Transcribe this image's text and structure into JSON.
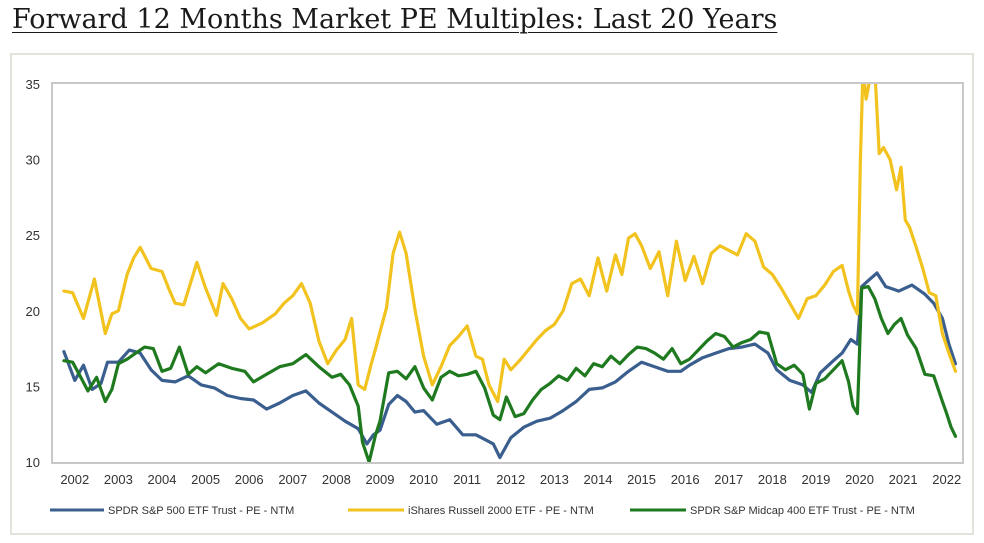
{
  "chart_data": {
    "type": "line",
    "title": "Forward 12 Months Market PE Multiples: Last 20 Years",
    "xlabel": "",
    "ylabel": "",
    "xlim": [
      2001.5,
      2022.35
    ],
    "ylim": [
      10,
      35
    ],
    "yticks": [
      10,
      15,
      20,
      25,
      30,
      35
    ],
    "xticks": [
      "2002",
      "2003",
      "2004",
      "2005",
      "2006",
      "2007",
      "2008",
      "2009",
      "2010",
      "2011",
      "2012",
      "2013",
      "2014",
      "2015",
      "2016",
      "2017",
      "2018",
      "2019",
      "2020",
      "2021",
      "2022"
    ],
    "grid": false,
    "legend_position": "bottom",
    "series": [
      {
        "name": "SPDR S&P 500 ETF Trust - PE - NTM",
        "color": "#3a5f8f",
        "x": [
          2001.75,
          2002.0,
          2002.2,
          2002.4,
          2002.6,
          2002.75,
          2003.0,
          2003.25,
          2003.5,
          2003.75,
          2004.0,
          2004.3,
          2004.6,
          2004.9,
          2005.2,
          2005.5,
          2005.8,
          2006.1,
          2006.4,
          2006.7,
          2007.0,
          2007.3,
          2007.6,
          2007.9,
          2008.2,
          2008.5,
          2008.7,
          2008.85,
          2009.0,
          2009.2,
          2009.4,
          2009.6,
          2009.8,
          2010.0,
          2010.3,
          2010.6,
          2010.9,
          2011.2,
          2011.4,
          2011.6,
          2011.75,
          2012.0,
          2012.3,
          2012.6,
          2012.9,
          2013.2,
          2013.5,
          2013.8,
          2014.1,
          2014.4,
          2014.7,
          2015.0,
          2015.3,
          2015.6,
          2015.9,
          2016.1,
          2016.4,
          2016.7,
          2017.0,
          2017.3,
          2017.6,
          2017.9,
          2018.1,
          2018.4,
          2018.7,
          2018.9,
          2019.1,
          2019.4,
          2019.6,
          2019.8,
          2019.95,
          2020.05,
          2020.2,
          2020.4,
          2020.6,
          2020.9,
          2021.2,
          2021.5,
          2021.7,
          2021.9,
          2022.05,
          2022.2
        ],
        "y": [
          17.3,
          15.4,
          16.4,
          14.8,
          15.2,
          16.6,
          16.6,
          17.4,
          17.2,
          16.1,
          15.4,
          15.3,
          15.7,
          15.1,
          14.9,
          14.4,
          14.2,
          14.1,
          13.5,
          13.9,
          14.4,
          14.7,
          13.9,
          13.3,
          12.7,
          12.2,
          11.2,
          11.8,
          12.1,
          13.8,
          14.4,
          14.0,
          13.3,
          13.4,
          12.5,
          12.8,
          11.8,
          11.8,
          11.5,
          11.2,
          10.3,
          11.6,
          12.3,
          12.7,
          12.9,
          13.4,
          14.0,
          14.8,
          14.9,
          15.3,
          16.0,
          16.6,
          16.3,
          16.0,
          16.0,
          16.4,
          16.9,
          17.2,
          17.5,
          17.6,
          17.8,
          17.2,
          16.1,
          15.4,
          15.1,
          14.6,
          15.9,
          16.7,
          17.2,
          18.1,
          17.8,
          21.6,
          22.0,
          22.5,
          21.6,
          21.3,
          21.7,
          21.1,
          20.5,
          19.5,
          17.8,
          16.5
        ]
      },
      {
        "name": "iShares Russell 2000 ETF - PE - NTM",
        "color": "#f2c31e",
        "x": [
          2001.75,
          2001.95,
          2002.2,
          2002.45,
          2002.7,
          2002.85,
          2003.0,
          2003.2,
          2003.35,
          2003.5,
          2003.75,
          2004.0,
          2004.15,
          2004.3,
          2004.5,
          2004.8,
          2005.0,
          2005.25,
          2005.4,
          2005.6,
          2005.8,
          2006.0,
          2006.3,
          2006.6,
          2006.8,
          2007.0,
          2007.2,
          2007.4,
          2007.6,
          2007.8,
          2008.0,
          2008.2,
          2008.35,
          2008.5,
          2008.65,
          2008.8,
          2008.9,
          2009.0,
          2009.15,
          2009.3,
          2009.45,
          2009.6,
          2009.8,
          2010.0,
          2010.2,
          2010.4,
          2010.6,
          2010.8,
          2011.0,
          2011.2,
          2011.35,
          2011.5,
          2011.7,
          2011.85,
          2012.0,
          2012.2,
          2012.4,
          2012.6,
          2012.8,
          2013.0,
          2013.2,
          2013.4,
          2013.6,
          2013.8,
          2014.0,
          2014.2,
          2014.4,
          2014.55,
          2014.7,
          2014.85,
          2015.0,
          2015.2,
          2015.4,
          2015.6,
          2015.8,
          2016.0,
          2016.2,
          2016.4,
          2016.6,
          2016.8,
          2017.0,
          2017.2,
          2017.4,
          2017.6,
          2017.8,
          2018.0,
          2018.2,
          2018.4,
          2018.6,
          2018.8,
          2019.0,
          2019.2,
          2019.4,
          2019.6,
          2019.75,
          2019.85,
          2019.95,
          2020.02,
          2020.08,
          2020.15,
          2020.25,
          2020.35,
          2020.45,
          2020.55,
          2020.7,
          2020.85,
          2020.95,
          2021.05,
          2021.15,
          2021.3,
          2021.45,
          2021.6,
          2021.75,
          2021.9,
          2022.05,
          2022.2
        ],
        "y": [
          21.3,
          21.2,
          19.5,
          22.1,
          18.5,
          19.8,
          20.0,
          22.4,
          23.5,
          24.2,
          22.8,
          22.6,
          21.5,
          20.5,
          20.4,
          23.2,
          21.5,
          19.7,
          21.8,
          20.8,
          19.5,
          18.8,
          19.2,
          19.8,
          20.5,
          21.0,
          21.8,
          20.5,
          18.0,
          16.5,
          17.4,
          18.1,
          19.5,
          15.1,
          14.8,
          16.5,
          17.5,
          18.6,
          20.2,
          23.8,
          25.2,
          23.8,
          20.1,
          17.0,
          15.1,
          16.3,
          17.7,
          18.3,
          19.0,
          17.0,
          16.8,
          15.1,
          14.0,
          16.8,
          16.1,
          16.7,
          17.4,
          18.1,
          18.7,
          19.1,
          20.0,
          21.8,
          22.1,
          21.0,
          23.5,
          21.3,
          23.7,
          22.4,
          24.8,
          25.1,
          24.3,
          22.8,
          23.9,
          21.0,
          24.6,
          22.0,
          23.6,
          21.8,
          23.8,
          24.3,
          24.0,
          23.7,
          25.1,
          24.6,
          22.9,
          22.4,
          21.5,
          20.5,
          19.5,
          20.8,
          21.0,
          21.7,
          22.6,
          23.0,
          21.3,
          20.4,
          19.8,
          30.0,
          36.0,
          34.0,
          35.5,
          36.0,
          30.4,
          30.8,
          30.0,
          28.0,
          29.5,
          26.0,
          25.5,
          24.2,
          22.8,
          21.2,
          21.0,
          18.5,
          17.2,
          16.0
        ]
      },
      {
        "name": "SPDR S&P Midcap 400 ETF Trust - PE - NTM",
        "color": "#1f7a1f",
        "x": [
          2001.75,
          2001.95,
          2002.1,
          2002.3,
          2002.5,
          2002.7,
          2002.85,
          2003.0,
          2003.2,
          2003.4,
          2003.6,
          2003.8,
          2004.0,
          2004.2,
          2004.4,
          2004.6,
          2004.8,
          2005.0,
          2005.3,
          2005.6,
          2005.9,
          2006.1,
          2006.4,
          2006.7,
          2007.0,
          2007.3,
          2007.6,
          2007.9,
          2008.1,
          2008.3,
          2008.5,
          2008.6,
          2008.75,
          2008.9,
          2009.0,
          2009.2,
          2009.4,
          2009.6,
          2009.8,
          2010.0,
          2010.2,
          2010.4,
          2010.6,
          2010.8,
          2011.0,
          2011.2,
          2011.4,
          2011.6,
          2011.75,
          2011.9,
          2012.1,
          2012.3,
          2012.5,
          2012.7,
          2012.9,
          2013.1,
          2013.3,
          2013.5,
          2013.7,
          2013.9,
          2014.1,
          2014.3,
          2014.5,
          2014.7,
          2014.9,
          2015.1,
          2015.3,
          2015.5,
          2015.7,
          2015.9,
          2016.1,
          2016.3,
          2016.5,
          2016.7,
          2016.9,
          2017.1,
          2017.3,
          2017.5,
          2017.7,
          2017.9,
          2018.1,
          2018.3,
          2018.5,
          2018.7,
          2018.85,
          2019.0,
          2019.2,
          2019.4,
          2019.6,
          2019.75,
          2019.85,
          2019.95,
          2020.05,
          2020.2,
          2020.35,
          2020.5,
          2020.65,
          2020.8,
          2020.95,
          2021.1,
          2021.3,
          2021.5,
          2021.7,
          2021.9,
          2022.0,
          2022.1,
          2022.2
        ],
        "y": [
          16.7,
          16.6,
          15.8,
          14.7,
          15.6,
          14.0,
          14.8,
          16.5,
          16.8,
          17.2,
          17.6,
          17.5,
          16.0,
          16.2,
          17.6,
          15.8,
          16.3,
          15.9,
          16.5,
          16.2,
          16.0,
          15.3,
          15.8,
          16.3,
          16.5,
          17.1,
          16.3,
          15.6,
          15.8,
          15.1,
          13.7,
          11.3,
          10.0,
          11.8,
          12.7,
          15.9,
          16.0,
          15.5,
          16.3,
          14.9,
          14.1,
          15.6,
          16.0,
          15.7,
          15.8,
          16.0,
          14.9,
          13.1,
          12.8,
          14.3,
          13.0,
          13.2,
          14.1,
          14.8,
          15.2,
          15.7,
          15.4,
          16.2,
          15.7,
          16.5,
          16.3,
          17.0,
          16.5,
          17.1,
          17.6,
          17.5,
          17.2,
          16.8,
          17.5,
          16.5,
          16.8,
          17.4,
          18.0,
          18.5,
          18.3,
          17.6,
          17.9,
          18.1,
          18.6,
          18.5,
          16.5,
          16.1,
          16.4,
          15.8,
          13.5,
          15.2,
          15.5,
          16.1,
          16.7,
          15.3,
          13.7,
          13.2,
          21.5,
          21.6,
          20.8,
          19.5,
          18.5,
          19.1,
          19.5,
          18.4,
          17.5,
          15.8,
          15.7,
          14.0,
          13.2,
          12.3,
          11.7
        ]
      }
    ]
  }
}
